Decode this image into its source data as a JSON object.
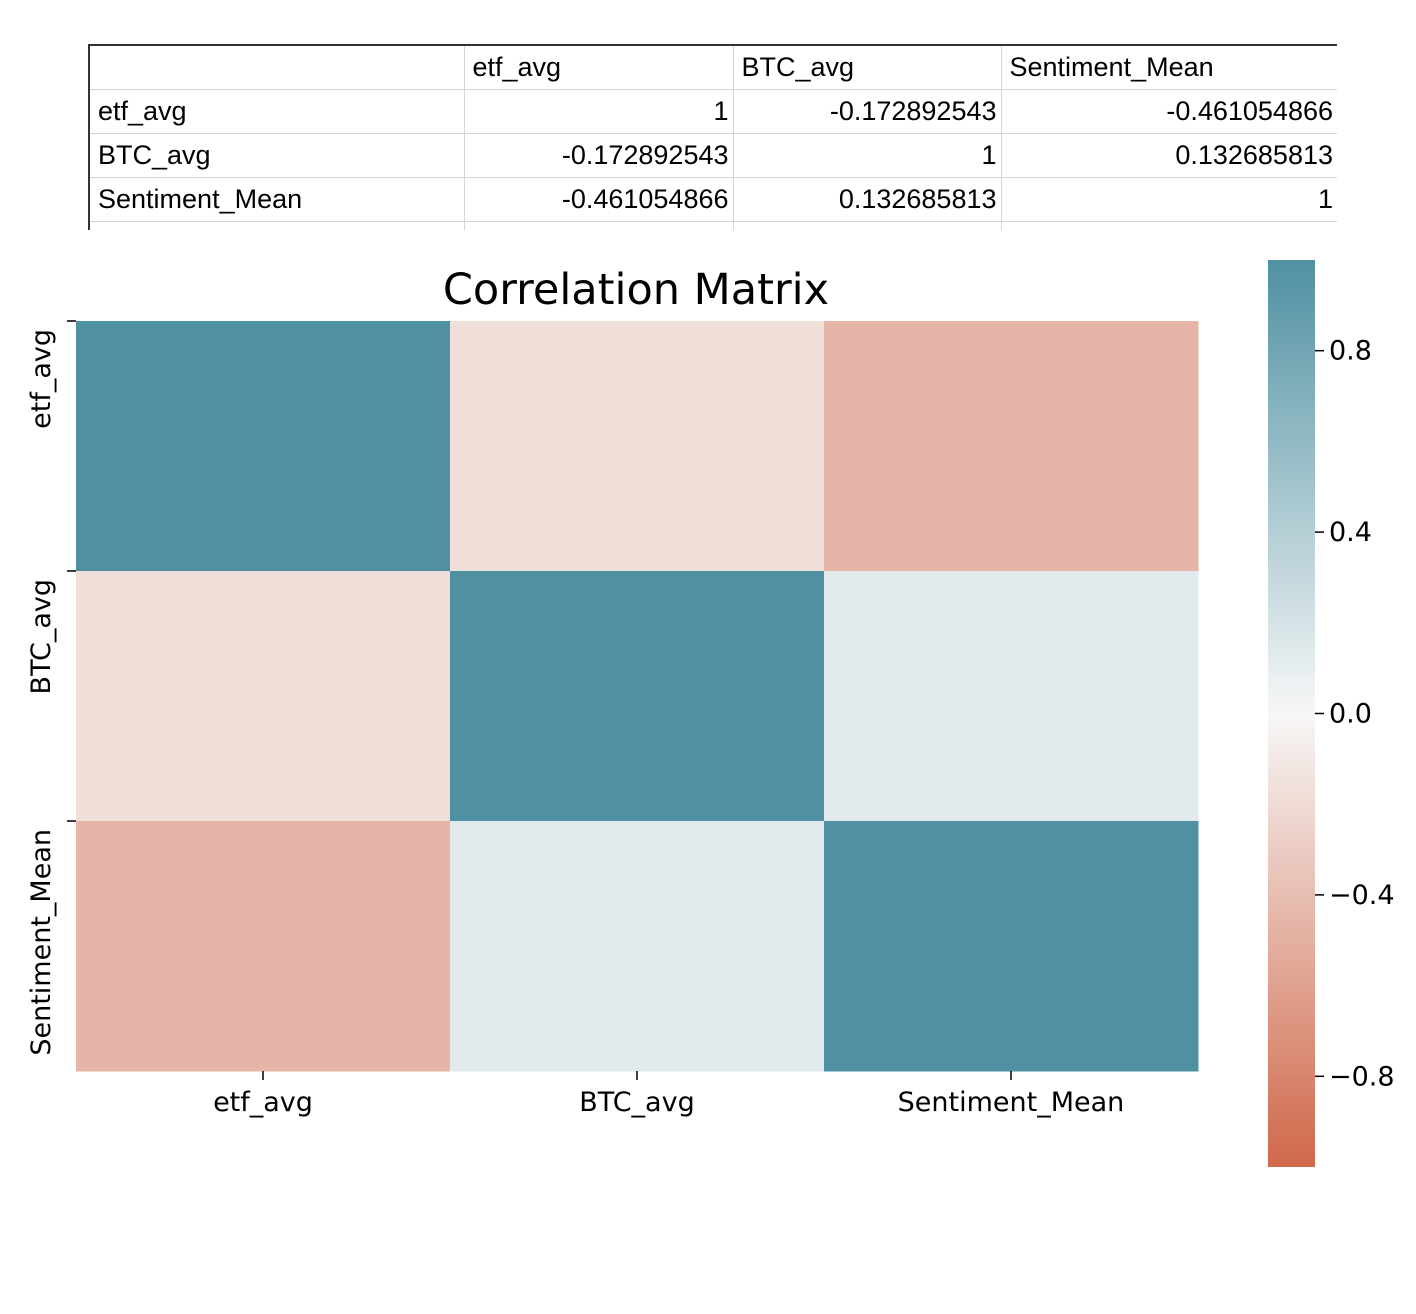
{
  "sheet": {
    "header": [
      "",
      "etf_avg",
      "BTC_avg",
      "Sentiment_Mean"
    ],
    "rows": [
      {
        "label": "etf_avg",
        "values": [
          "1",
          "-0.172892543",
          "-0.461054866"
        ]
      },
      {
        "label": "BTC_avg",
        "values": [
          "-0.172892543",
          "1",
          "0.132685813"
        ]
      },
      {
        "label": "Sentiment_Mean",
        "values": [
          "-0.461054866",
          "0.132685813",
          "1"
        ]
      }
    ]
  },
  "chart_data": {
    "type": "heatmap",
    "title": "Correlation Matrix",
    "x_categories": [
      "etf_avg",
      "BTC_avg",
      "Sentiment_Mean"
    ],
    "y_categories": [
      "etf_avg",
      "BTC_avg",
      "Sentiment_Mean"
    ],
    "values": [
      [
        1,
        -0.172892543,
        -0.461054866
      ],
      [
        -0.172892543,
        1,
        0.132685813
      ],
      [
        -0.461054866,
        0.132685813,
        1
      ]
    ],
    "vmin": -1,
    "vmax": 1,
    "colorbar_ticks": [
      0.8,
      0.4,
      0.0,
      -0.4,
      -0.8
    ],
    "colorbar_tick_labels": [
      "0.8",
      "0.4",
      "0.0",
      "−0.4",
      "−0.8"
    ],
    "colors": {
      "positive": "#4f91a2",
      "neutral": "#f7f7f7",
      "negative": "#d0684a"
    }
  }
}
